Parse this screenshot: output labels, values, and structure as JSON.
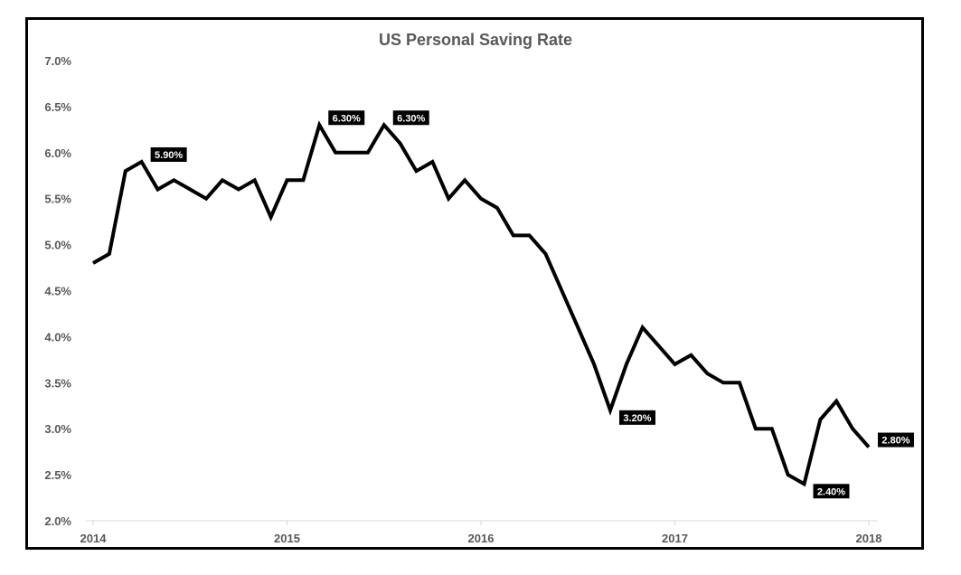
{
  "chart_data": {
    "type": "line",
    "title": "US Personal Saving Rate",
    "xlabel": "",
    "ylabel": "",
    "ylim": [
      2.0,
      7.0
    ],
    "xlim": [
      2014,
      2018.083
    ],
    "grid": false,
    "legend": "none",
    "y_ticks": [
      "2.0%",
      "2.5%",
      "3.0%",
      "3.5%",
      "4.0%",
      "4.5%",
      "5.0%",
      "5.5%",
      "6.0%",
      "6.5%",
      "7.0%"
    ],
    "y_tick_values": [
      2.0,
      2.5,
      3.0,
      3.5,
      4.0,
      4.5,
      5.0,
      5.5,
      6.0,
      6.5,
      7.0
    ],
    "x_ticks": [
      "2014",
      "2015",
      "2016",
      "2017",
      "2018"
    ],
    "x_tick_values": [
      2014,
      2015,
      2016,
      2017,
      2018
    ],
    "series": [
      {
        "name": "US Personal Saving Rate",
        "color": "#000000",
        "values": [
          4.8,
          4.9,
          5.8,
          5.9,
          5.6,
          5.7,
          5.6,
          5.5,
          5.7,
          5.6,
          5.7,
          5.3,
          5.7,
          5.7,
          6.3,
          6.0,
          6.0,
          6.0,
          6.3,
          6.1,
          5.8,
          5.9,
          5.5,
          5.7,
          5.5,
          5.4,
          5.1,
          5.1,
          4.9,
          4.5,
          4.1,
          3.7,
          3.2,
          3.7,
          4.1,
          3.9,
          3.7,
          3.8,
          3.6,
          3.5,
          3.5,
          3.0,
          3.0,
          2.5,
          2.4,
          3.1,
          3.3,
          3.0,
          2.8
        ]
      }
    ],
    "data_labels": [
      {
        "index": 3,
        "text": "5.90%"
      },
      {
        "index": 14,
        "text": "6.30%"
      },
      {
        "index": 18,
        "text": "6.30%"
      },
      {
        "index": 32,
        "text": "3.20%"
      },
      {
        "index": 44,
        "text": "2.40%"
      },
      {
        "index": 48,
        "text": "2.80%"
      }
    ]
  }
}
